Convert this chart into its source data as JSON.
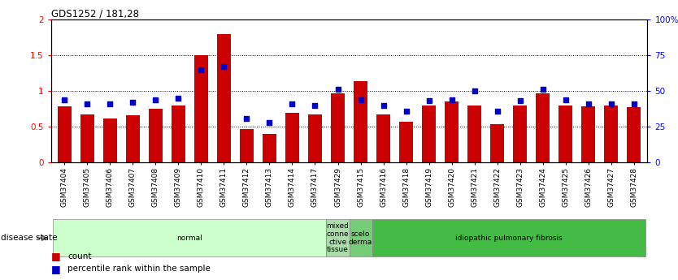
{
  "title": "GDS1252 / 181,28",
  "categories": [
    "GSM37404",
    "GSM37405",
    "GSM37406",
    "GSM37407",
    "GSM37408",
    "GSM37409",
    "GSM37410",
    "GSM37411",
    "GSM37412",
    "GSM37413",
    "GSM37414",
    "GSM37417",
    "GSM37429",
    "GSM37415",
    "GSM37416",
    "GSM37418",
    "GSM37419",
    "GSM37420",
    "GSM37421",
    "GSM37422",
    "GSM37423",
    "GSM37424",
    "GSM37425",
    "GSM37426",
    "GSM37427",
    "GSM37428"
  ],
  "bar_values": [
    0.78,
    0.67,
    0.62,
    0.66,
    0.75,
    0.8,
    1.5,
    1.8,
    0.47,
    0.4,
    0.7,
    0.67,
    0.97,
    1.14,
    0.67,
    0.57,
    0.8,
    0.85,
    0.8,
    0.53,
    0.8,
    0.97,
    0.8,
    0.79,
    0.8,
    0.77
  ],
  "dot_values": [
    44,
    41,
    41,
    42,
    44,
    45,
    65,
    67,
    31,
    28,
    41,
    40,
    51,
    44,
    40,
    36,
    43,
    44,
    50,
    36,
    43,
    51,
    44,
    41,
    41,
    41
  ],
  "bar_color": "#cc0000",
  "dot_color": "#0000cc",
  "ylim_left": [
    0,
    2
  ],
  "ylim_right": [
    0,
    100
  ],
  "yticks_left": [
    0,
    0.5,
    1.0,
    1.5,
    2.0
  ],
  "yticks_right": [
    0,
    25,
    50,
    75,
    100
  ],
  "ytick_labels_left": [
    "0",
    "0.5",
    "1",
    "1.5",
    "2"
  ],
  "ytick_labels_right": [
    "0",
    "25",
    "50",
    "75",
    "100%"
  ],
  "hlines": [
    0.5,
    1.0,
    1.5
  ],
  "groups": [
    {
      "label": "normal",
      "start": 0,
      "end": 12,
      "color": "#ccffcc"
    },
    {
      "label": "mixed\nconne\nctive\ntissue",
      "start": 12,
      "end": 13,
      "color": "#aaddaa"
    },
    {
      "label": "scelo\nderma",
      "start": 13,
      "end": 14,
      "color": "#77cc77"
    },
    {
      "label": "idiopathic pulmonary fibrosis",
      "start": 14,
      "end": 26,
      "color": "#44bb44"
    }
  ],
  "disease_state_label": "disease state",
  "legend_count_label": "count",
  "legend_pct_label": "percentile rank within the sample",
  "background_color": "#ffffff"
}
